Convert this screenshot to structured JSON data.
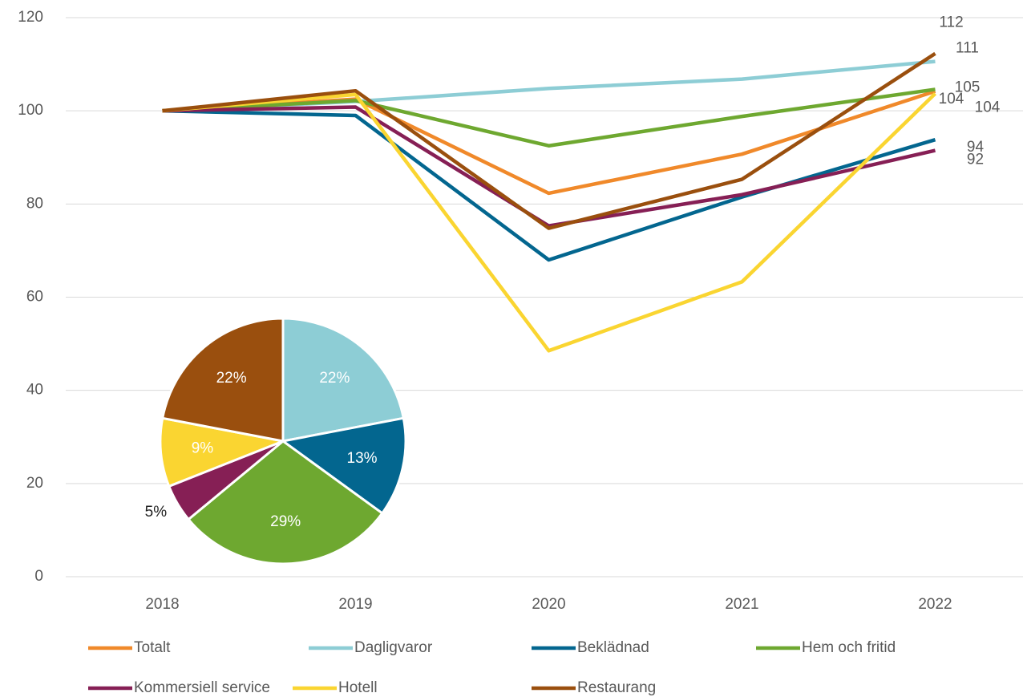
{
  "chart_data": [
    {
      "type": "line",
      "categories": [
        "2018",
        "2019",
        "2020",
        "2021",
        "2022"
      ],
      "ylim": [
        0,
        120
      ],
      "yticks": [
        0,
        20,
        40,
        60,
        80,
        100,
        120
      ],
      "grid": true,
      "series": [
        {
          "name": "Totalt",
          "color": "#F0892A",
          "values": [
            100,
            102.5,
            82.3,
            90.7,
            104.2
          ],
          "value_labels": [
            null,
            null,
            null,
            null,
            "104"
          ]
        },
        {
          "name": "Dagligvaror",
          "color": "#8DCDD5",
          "values": [
            100,
            102,
            104.8,
            106.8,
            110.6
          ],
          "value_labels": [
            null,
            null,
            null,
            null,
            "111"
          ]
        },
        {
          "name": "Beklädnad",
          "color": "#03668F",
          "values": [
            100,
            99,
            68,
            81.5,
            93.8
          ],
          "value_labels": [
            null,
            null,
            null,
            null,
            "94"
          ]
        },
        {
          "name": "Hem och fritid",
          "color": "#6EA830",
          "values": [
            100,
            102.2,
            92.5,
            98.8,
            104.6
          ],
          "value_labels": [
            null,
            null,
            null,
            null,
            "105"
          ]
        },
        {
          "name": "Kommersiell service",
          "color": "#861F55",
          "values": [
            100,
            100.8,
            75.3,
            82,
            91.5
          ],
          "value_labels": [
            null,
            null,
            null,
            null,
            "92"
          ]
        },
        {
          "name": "Hotell",
          "color": "#FAD531",
          "values": [
            100,
            103.5,
            48.5,
            63.3,
            103.7
          ],
          "value_labels": [
            null,
            null,
            null,
            null,
            "104"
          ]
        },
        {
          "name": "Restaurang",
          "color": "#9A4F0E",
          "values": [
            100,
            104.3,
            74.8,
            85.3,
            112.3
          ],
          "value_labels": [
            null,
            null,
            null,
            null,
            "112"
          ]
        }
      ]
    },
    {
      "type": "pie",
      "values": [
        22,
        13,
        29,
        5,
        9,
        22
      ],
      "value_labels": [
        "22%",
        "13%",
        "29%",
        "5%",
        "9%",
        "22%"
      ],
      "colors": [
        "#8DCDD5",
        "#03668F",
        "#6EA830",
        "#861F55",
        "#FAD531",
        "#9A4F0E"
      ]
    }
  ]
}
